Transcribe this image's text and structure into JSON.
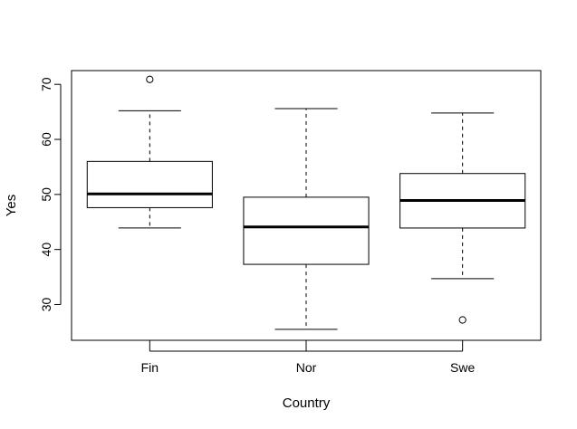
{
  "chart_data": {
    "type": "boxplot",
    "title": "",
    "xlabel": "Country",
    "ylabel": "Yes",
    "ylim": [
      23.5,
      72.5
    ],
    "yticks": [
      30,
      40,
      50,
      60,
      70
    ],
    "grid": false,
    "categories": [
      "Fin",
      "Nor",
      "Swe"
    ],
    "boxes": [
      {
        "category": "Fin",
        "whisker_low": 43.9,
        "q1": 47.6,
        "median": 50.1,
        "q3": 56.0,
        "whisker_high": 65.2,
        "outliers": [
          70.9
        ]
      },
      {
        "category": "Nor",
        "whisker_low": 25.5,
        "q1": 37.3,
        "median": 44.1,
        "q3": 49.5,
        "whisker_high": 65.6,
        "outliers": []
      },
      {
        "category": "Swe",
        "whisker_low": 34.7,
        "q1": 43.9,
        "median": 48.9,
        "q3": 53.8,
        "whisker_high": 64.8,
        "outliers": [
          27.2
        ]
      }
    ]
  }
}
